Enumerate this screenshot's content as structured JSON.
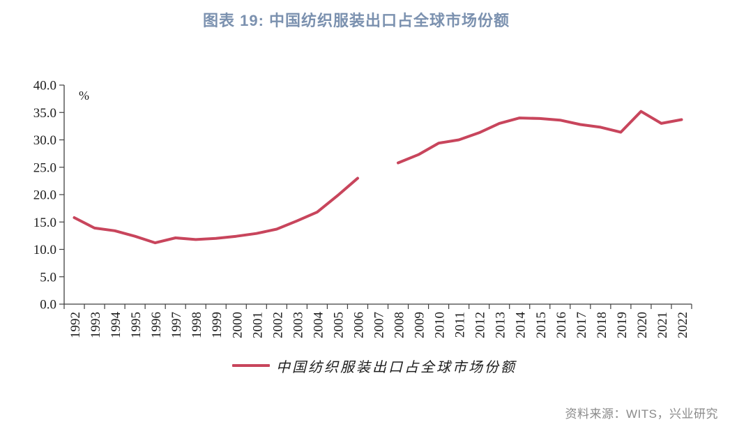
{
  "title": "图表  19: 中国纺织服装出口占全球市场份额",
  "source_note": "资料来源：WITS，兴业研究",
  "colors": {
    "title": "#7B91AF",
    "line": "#C8455C",
    "axis": "#3f3f3f",
    "tick_text": "#1c1c1c",
    "source_text": "#8a8a8a"
  },
  "legend": {
    "label": "中国纺织服装出口占全球市场份额"
  },
  "chart_data": {
    "type": "line",
    "title": "图表 19: 中国纺织服装出口占全球市场份额",
    "unit_label": "%",
    "xlabel": "",
    "ylabel": "%",
    "ylim": [
      0.0,
      40.0
    ],
    "ytick_step": 5.0,
    "ytick_labels": [
      "0.0",
      "5.0",
      "10.0",
      "15.0",
      "20.0",
      "25.0",
      "30.0",
      "35.0",
      "40.0"
    ],
    "grid": false,
    "legend_position": "bottom",
    "categories": [
      1992,
      1993,
      1994,
      1995,
      1996,
      1997,
      1998,
      1999,
      2000,
      2001,
      2002,
      2003,
      2004,
      2005,
      2006,
      2007,
      2008,
      2009,
      2010,
      2011,
      2012,
      2013,
      2014,
      2015,
      2016,
      2017,
      2018,
      2019,
      2020,
      2021,
      2022
    ],
    "series": [
      {
        "name": "中国纺织服装出口占全球市场份额",
        "color": "#C8455C",
        "gap_note": "no data for 2007 (line break)",
        "values": [
          15.8,
          13.9,
          13.4,
          12.4,
          11.2,
          12.1,
          11.8,
          12.0,
          12.4,
          12.9,
          13.7,
          15.2,
          16.8,
          19.8,
          23.0,
          null,
          25.8,
          27.3,
          29.4,
          30.0,
          31.3,
          33.0,
          34.0,
          33.9,
          33.6,
          32.8,
          32.3,
          31.4,
          35.2,
          33.0,
          33.7
        ]
      }
    ]
  }
}
